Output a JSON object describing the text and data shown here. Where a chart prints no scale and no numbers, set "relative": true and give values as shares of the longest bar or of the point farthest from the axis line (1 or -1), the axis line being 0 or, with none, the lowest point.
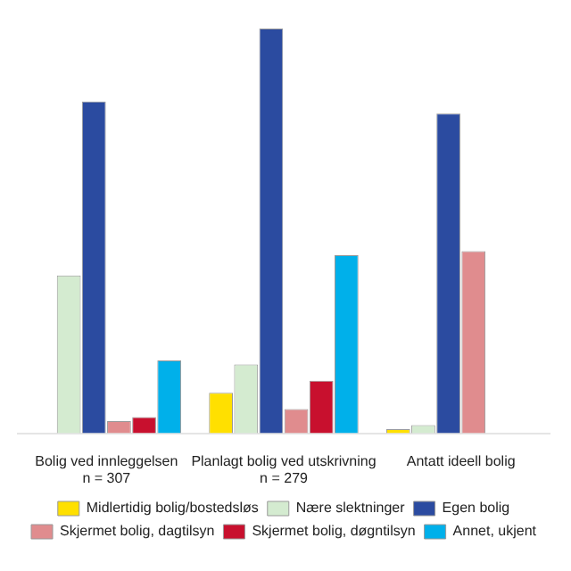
{
  "chart_data": {
    "type": "bar",
    "relative": true,
    "categories": [
      "Bolig ved innleggelsen\nn = 307",
      "Planlagt bolig ved utskrivning\nn = 279",
      "Antatt ideell bolig"
    ],
    "series": [
      {
        "name": "Midlertidig bolig/bostedsløs",
        "color": "#ffe000",
        "values": [
          null,
          0.1,
          0.01
        ]
      },
      {
        "name": "Nære slektninger",
        "color": "#d4ebd0",
        "values": [
          0.39,
          0.17,
          0.02
        ]
      },
      {
        "name": "Egen bolig",
        "color": "#2b4ba0",
        "values": [
          0.82,
          1,
          0.79
        ]
      },
      {
        "name": "Skjermet bolig, dagtilsyn",
        "color": "#e08c8e",
        "values": [
          0.03,
          0.06,
          0.45
        ]
      },
      {
        "name": "Skjermet bolig, døgntilsyn",
        "color": "#c8102e",
        "values": [
          0.04,
          0.13,
          null
        ]
      },
      {
        "name": "Annet, ukjent",
        "color": "#00b0ea",
        "values": [
          0.18,
          0.44,
          null
        ]
      }
    ],
    "legend": "bottom",
    "grid": false
  }
}
